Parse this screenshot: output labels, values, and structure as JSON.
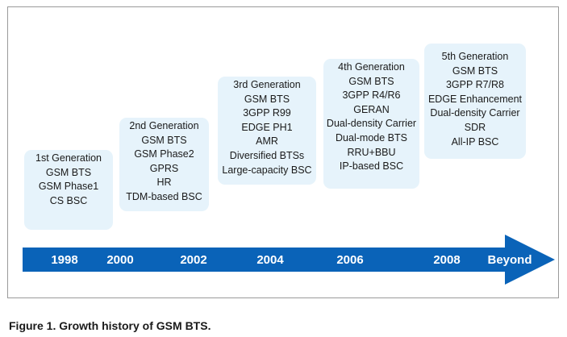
{
  "generations": [
    {
      "title": "1st Generation",
      "items": [
        "GSM BTS",
        "GSM Phase1",
        "CS BSC"
      ]
    },
    {
      "title": "2nd Generation",
      "items": [
        "GSM BTS",
        "GSM Phase2",
        "GPRS",
        "HR",
        "TDM-based BSC"
      ]
    },
    {
      "title": "3rd Generation",
      "items": [
        "GSM BTS",
        "3GPP R99",
        "EDGE PH1",
        "AMR",
        "Diversified BTSs",
        "Large-capacity BSC"
      ]
    },
    {
      "title": "4th Generation",
      "items": [
        "GSM BTS",
        "3GPP R4/R6",
        "GERAN",
        "Dual-density Carrier",
        "Dual-mode BTS",
        "RRU+BBU",
        "IP-based BSC"
      ]
    },
    {
      "title": "5th Generation",
      "items": [
        "GSM BTS",
        "3GPP R7/R8",
        "EDGE Enhancement",
        "Dual-density Carrier",
        "SDR",
        "All-IP BSC"
      ]
    }
  ],
  "timeline": [
    "1998",
    "2000",
    "2002",
    "2004",
    "2006",
    "2008",
    "Beyond"
  ],
  "caption": "Figure 1. Growth history of GSM BTS.",
  "colors": {
    "arrow": "#0a63b8",
    "box_fill": "#e6f3fb",
    "frame": "#9a9a9a"
  }
}
